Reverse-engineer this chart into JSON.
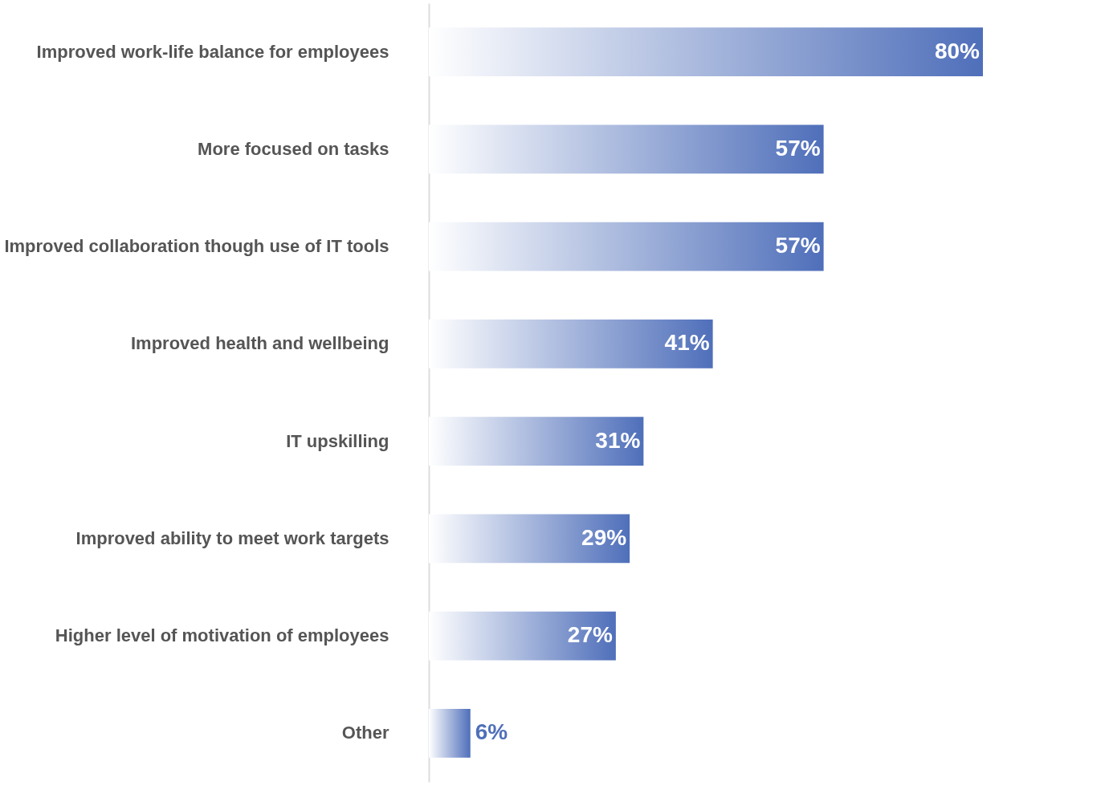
{
  "chart_data": {
    "type": "bar",
    "orientation": "horizontal",
    "categories": [
      "Improved work-life balance for employees",
      "More focused on tasks",
      "Improved collaboration though use of IT tools",
      "Improved health and wellbeing",
      "IT upskilling",
      "Improved ability to meet work targets",
      "Higher level of motivation of employees",
      "Other"
    ],
    "values": [
      80,
      57,
      57,
      41,
      31,
      29,
      27,
      6
    ],
    "value_labels": [
      "80%",
      "57%",
      "57%",
      "41%",
      "31%",
      "29%",
      "27%",
      "6%"
    ],
    "color": "#4f6fba"
  }
}
